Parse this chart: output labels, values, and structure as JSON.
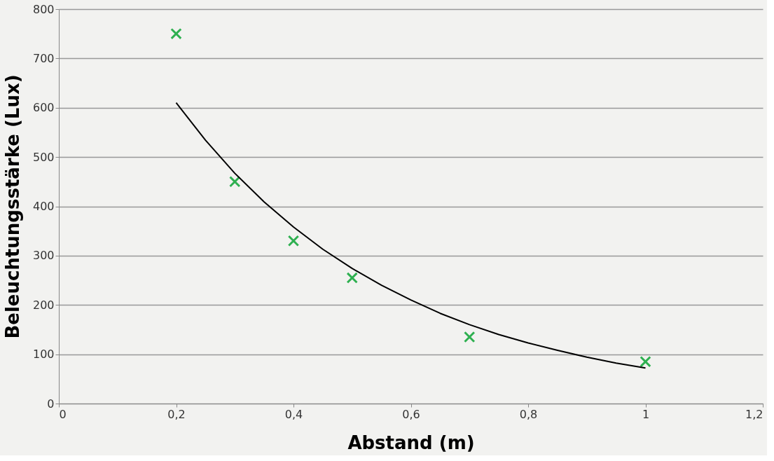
{
  "chart_data": {
    "type": "scatter",
    "xlabel": "Abstand (m)",
    "ylabel": "Beleuchtungsstärke (Lux)",
    "xlim": [
      0,
      1.2
    ],
    "xticks": [
      0,
      {
        "value": 0.2,
        "label": "0,2"
      },
      {
        "value": 0.4,
        "label": "0,4"
      },
      {
        "value": 0.6,
        "label": "0,6"
      },
      {
        "value": 0.8,
        "label": "0,8"
      },
      1,
      {
        "value": 1.2,
        "label": "1,2"
      }
    ],
    "ylim": [
      0,
      800
    ],
    "yticks": [
      0,
      100,
      200,
      300,
      400,
      500,
      600,
      700,
      800
    ],
    "grid": "y",
    "series": [
      {
        "type": "scatter",
        "color": "#2eb050",
        "marker": "cross",
        "x": [
          0.2,
          0.3,
          0.4,
          0.5,
          0.7,
          1.0
        ],
        "values": [
          750,
          450,
          330,
          255,
          135,
          85
        ]
      },
      {
        "type": "line",
        "color": "#000000",
        "marker": "none",
        "x": [
          0.2,
          0.25,
          0.3,
          0.35,
          0.4,
          0.45,
          0.5,
          0.55,
          0.6,
          0.65,
          0.7,
          0.75,
          0.8,
          0.85,
          0.9,
          0.95,
          1.0
        ],
        "values": [
          610,
          534,
          467,
          409,
          358,
          313,
          274,
          240,
          210,
          183,
          160,
          140,
          123,
          108,
          94,
          82,
          72
        ]
      }
    ]
  }
}
